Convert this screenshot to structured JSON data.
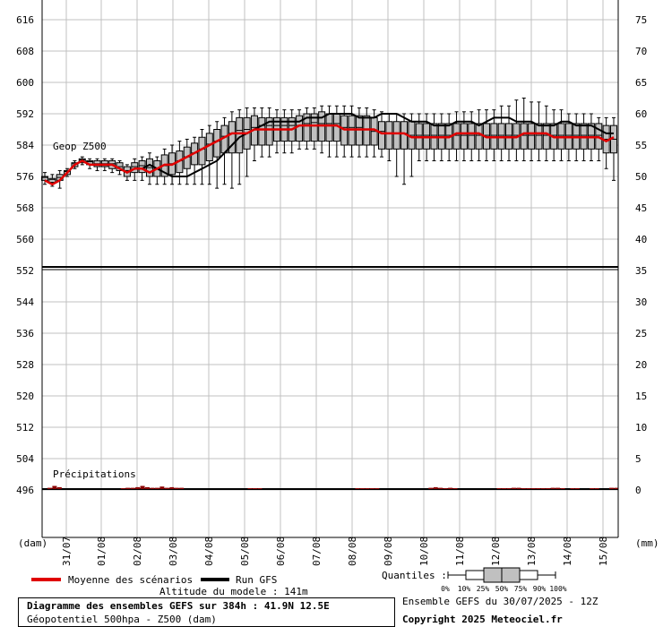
{
  "colors": {
    "mean": "#e00000",
    "gfs": "#000000",
    "box_fill": "#c0c0c0",
    "grid": "#c0c0c0",
    "precip": "#8b0000"
  },
  "chart_data": {
    "type": "boxplot",
    "x": [
      "31/07",
      "01/08",
      "02/08",
      "03/08",
      "04/08",
      "05/08",
      "06/08",
      "07/08",
      "08/08",
      "09/08",
      "10/08",
      "11/08",
      "12/08",
      "13/08",
      "14/08",
      "15/08"
    ],
    "left_axis": {
      "unit": "(dam)",
      "ticks": [
        616,
        608,
        600,
        592,
        584,
        576,
        568,
        560,
        552,
        544,
        536,
        528,
        520,
        512,
        504,
        496
      ]
    },
    "right_axis": {
      "unit": "(mm)",
      "ticks_top": [
        75,
        70,
        65,
        60,
        55,
        50,
        45,
        40
      ],
      "ticks_bottom": [
        35,
        30,
        25,
        20,
        15,
        10,
        5,
        0
      ]
    },
    "upper_label": "Geop Z500",
    "lower_label": "Précipitations",
    "series": [
      {
        "name": "Moyenne des scénarios",
        "values": [
          575,
          574,
          575,
          577,
          579,
          580,
          579,
          579,
          579,
          579,
          578,
          577,
          578,
          578,
          577,
          578,
          579,
          579,
          580,
          581,
          582,
          583,
          584,
          585,
          586,
          587,
          587,
          587,
          588,
          588,
          588,
          588,
          588,
          588,
          589,
          589,
          589,
          589,
          589,
          589,
          588,
          588,
          588,
          588,
          588,
          587,
          587,
          587,
          587,
          586,
          586,
          586,
          586,
          586,
          586,
          587,
          587,
          587,
          587,
          586,
          586,
          586,
          586,
          586,
          587,
          587,
          587,
          587,
          586,
          586,
          586,
          586,
          586,
          586,
          586,
          585,
          586
        ]
      },
      {
        "name": "Run GFS",
        "values": [
          575,
          574,
          575,
          577,
          579,
          580,
          579,
          579,
          579,
          579,
          578,
          577,
          578,
          578,
          579,
          578,
          577,
          576,
          576,
          576,
          577,
          578,
          579,
          580,
          582,
          584,
          586,
          587,
          588,
          589,
          590,
          590,
          590,
          590,
          590,
          591,
          591,
          591,
          592,
          592,
          592,
          592,
          591,
          591,
          591,
          592,
          592,
          592,
          591,
          590,
          590,
          590,
          589,
          589,
          589,
          590,
          590,
          590,
          589,
          590,
          591,
          591,
          591,
          590,
          590,
          590,
          589,
          589,
          589,
          590,
          590,
          589,
          589,
          589,
          588,
          587,
          587
        ]
      }
    ],
    "boxes": [
      [
        575,
        575.5,
        576,
        576
      ],
      [
        574.5,
        575,
        575.5,
        575.5
      ],
      [
        575,
        575.5,
        576,
        576.5
      ],
      [
        576.5,
        577,
        577.5,
        577.5
      ],
      [
        578.5,
        579,
        579.5,
        579.5
      ],
      [
        579.5,
        580,
        580.5,
        580.5
      ],
      [
        579,
        579.5,
        580,
        580
      ],
      [
        578.5,
        579,
        579.5,
        580
      ],
      [
        578.5,
        579,
        579.5,
        580
      ],
      [
        578,
        579,
        579.5,
        580
      ],
      [
        577.5,
        578,
        579,
        579.5
      ],
      [
        576,
        577,
        578,
        578.5
      ],
      [
        577,
        578,
        579,
        579.5
      ],
      [
        577,
        578,
        579.5,
        580
      ],
      [
        576,
        577.5,
        579,
        580.5
      ],
      [
        576,
        577,
        579,
        580
      ],
      [
        576,
        577.5,
        580,
        581.5
      ],
      [
        576.5,
        578,
        580.5,
        582
      ],
      [
        577,
        579,
        581,
        582.5
      ],
      [
        578,
        580,
        582,
        583.5
      ],
      [
        579,
        581,
        583,
        584.5
      ],
      [
        579,
        582,
        584,
        586
      ],
      [
        580,
        583,
        585.5,
        587
      ],
      [
        581,
        584,
        586,
        588
      ],
      [
        582,
        585,
        587.5,
        589
      ],
      [
        582,
        586,
        588,
        590
      ],
      [
        582,
        586.5,
        589,
        591
      ],
      [
        583,
        587,
        589,
        591
      ],
      [
        584,
        587,
        590,
        591.5
      ],
      [
        584,
        588,
        590,
        591
      ],
      [
        584,
        588,
        590,
        591
      ],
      [
        585,
        588,
        590,
        591
      ],
      [
        585,
        588,
        590,
        591
      ],
      [
        585,
        588,
        590,
        591
      ],
      [
        585,
        588,
        590,
        591.5
      ],
      [
        585,
        588.5,
        590.5,
        592
      ],
      [
        585,
        588.5,
        591,
        592
      ],
      [
        585,
        588,
        591,
        592.5
      ],
      [
        585,
        588,
        591,
        592
      ],
      [
        585,
        588,
        591,
        592
      ],
      [
        584,
        587,
        590,
        591.5
      ],
      [
        584,
        587,
        590,
        591.5
      ],
      [
        584,
        587,
        590,
        591.5
      ],
      [
        584,
        586,
        590,
        591.5
      ],
      [
        584,
        586,
        589,
        591
      ],
      [
        583,
        586,
        589,
        590
      ],
      [
        583,
        585,
        589,
        590
      ],
      [
        583,
        585,
        589,
        590
      ],
      [
        583,
        585,
        589,
        590
      ],
      [
        583,
        585,
        588,
        590
      ],
      [
        583,
        585,
        588,
        589.5
      ],
      [
        583,
        585,
        588,
        589.5
      ],
      [
        583,
        585,
        588,
        589.5
      ],
      [
        583,
        585,
        588,
        589.5
      ],
      [
        583,
        585,
        588,
        589.5
      ],
      [
        583,
        585,
        588,
        589.5
      ],
      [
        583,
        585,
        588,
        589.5
      ],
      [
        583,
        585,
        588,
        589.5
      ],
      [
        583,
        585,
        588,
        589.5
      ],
      [
        583,
        585,
        588,
        589.5
      ],
      [
        583,
        585,
        588,
        589.5
      ],
      [
        583,
        585,
        588,
        589.5
      ],
      [
        583,
        585,
        588,
        589.5
      ],
      [
        583,
        585,
        588,
        589.5
      ],
      [
        583,
        585,
        588,
        589.5
      ],
      [
        583,
        585,
        588,
        589.5
      ],
      [
        583,
        585,
        588,
        589.5
      ],
      [
        583,
        585,
        588,
        589.5
      ],
      [
        583,
        585,
        588,
        589.5
      ],
      [
        583,
        585,
        588,
        589.5
      ],
      [
        583,
        585,
        588,
        589.5
      ],
      [
        583,
        585,
        588,
        589.5
      ],
      [
        583,
        585,
        588,
        589.5
      ],
      [
        583,
        585,
        588,
        589.5
      ],
      [
        583,
        585,
        588,
        589.5
      ],
      [
        582,
        584,
        587,
        589
      ],
      [
        582,
        584,
        587,
        589
      ]
    ],
    "whiskers": [
      [
        574,
        577
      ],
      [
        573.5,
        576.5
      ],
      [
        573,
        577.5
      ],
      [
        576,
        578
      ],
      [
        578,
        580
      ],
      [
        579,
        581
      ],
      [
        578,
        580.5
      ],
      [
        577.5,
        580.5
      ],
      [
        577.5,
        580.5
      ],
      [
        577,
        580.5
      ],
      [
        576.5,
        580
      ],
      [
        575,
        579
      ],
      [
        575,
        580.5
      ],
      [
        575,
        581
      ],
      [
        574,
        582
      ],
      [
        574,
        581
      ],
      [
        574,
        583
      ],
      [
        574,
        584
      ],
      [
        574,
        585
      ],
      [
        574,
        585.5
      ],
      [
        574,
        586
      ],
      [
        574,
        588
      ],
      [
        574,
        589
      ],
      [
        573,
        590
      ],
      [
        574,
        591
      ],
      [
        573,
        592.5
      ],
      [
        574,
        593
      ],
      [
        576,
        593.5
      ],
      [
        580,
        593.5
      ],
      [
        581,
        593.5
      ],
      [
        581,
        593.5
      ],
      [
        582,
        593
      ],
      [
        582,
        593
      ],
      [
        582,
        593
      ],
      [
        583,
        593
      ],
      [
        583,
        593.5
      ],
      [
        583,
        593.5
      ],
      [
        582,
        594
      ],
      [
        581,
        594
      ],
      [
        581,
        594
      ],
      [
        581,
        594
      ],
      [
        581,
        594
      ],
      [
        581,
        593.5
      ],
      [
        581,
        593.5
      ],
      [
        581,
        593
      ],
      [
        581,
        592.5
      ],
      [
        580,
        592
      ],
      [
        576,
        592
      ],
      [
        574,
        592
      ],
      [
        576,
        592
      ],
      [
        580,
        592
      ],
      [
        580,
        592
      ],
      [
        580,
        592
      ],
      [
        580,
        592
      ],
      [
        580,
        592
      ],
      [
        580,
        592.5
      ],
      [
        580,
        592.5
      ],
      [
        580,
        592.5
      ],
      [
        580,
        593
      ],
      [
        580,
        593
      ],
      [
        580,
        593
      ],
      [
        580,
        594
      ],
      [
        580,
        594
      ],
      [
        580,
        595.5
      ],
      [
        580,
        596
      ],
      [
        580,
        595
      ],
      [
        580,
        595
      ],
      [
        580,
        594
      ],
      [
        580,
        593
      ],
      [
        580,
        593
      ],
      [
        580,
        592
      ],
      [
        580,
        592
      ],
      [
        580,
        592
      ],
      [
        580,
        592
      ],
      [
        580,
        591
      ],
      [
        578,
        591
      ],
      [
        575,
        591
      ]
    ],
    "precipitation_mm": [
      0,
      0.2,
      0.5,
      0.3,
      0,
      0,
      0,
      0,
      0,
      0,
      0,
      0,
      0,
      0,
      0,
      0,
      0.1,
      0.2,
      0.2,
      0.3,
      0.5,
      0.3,
      0.2,
      0.2,
      0.4,
      0.2,
      0.3,
      0.2,
      0.2,
      0,
      0,
      0,
      0,
      0,
      0,
      0,
      0,
      0,
      0,
      0,
      0,
      0,
      0.1,
      0.1,
      0.1,
      0,
      0,
      0,
      0,
      0,
      0,
      0,
      0,
      0,
      0,
      0,
      0,
      0,
      0,
      0,
      0,
      0,
      0,
      0,
      0.1,
      0.1,
      0.1,
      0.1,
      0.1,
      0,
      0,
      0,
      0,
      0,
      0,
      0,
      0,
      0,
      0,
      0.2,
      0.3,
      0.2,
      0.1,
      0.2,
      0.1,
      0,
      0,
      0,
      0,
      0,
      0,
      0,
      0,
      0.1,
      0.1,
      0.1,
      0.2,
      0.2,
      0.1,
      0.1,
      0.1,
      0.1,
      0.1,
      0.1,
      0.2,
      0.2,
      0.1,
      0,
      0.1,
      0.1,
      0,
      0,
      0.1,
      0.1,
      0,
      0,
      0.2,
      0.2
    ],
    "grid": true
  },
  "legend": {
    "mean_label": "Moyenne des scénarios",
    "gfs_label": "Run GFS",
    "altitude": "Altitude du modele : 141m",
    "quantiles_label": "Quantiles :",
    "quantile_ticks": [
      "0%",
      "10%",
      "25%",
      "50%",
      "75%",
      "90%",
      "100%"
    ]
  },
  "footer": {
    "title": "Diagramme des ensembles GEFS sur 384h : 41.9N 12.5E",
    "subtitle": "Géopotentiel 500hpa - Z500 (dam)",
    "run": "Ensemble GEFS du 30/07/2025 - 12Z",
    "copyright": "Copyright 2025 Meteociel.fr"
  }
}
